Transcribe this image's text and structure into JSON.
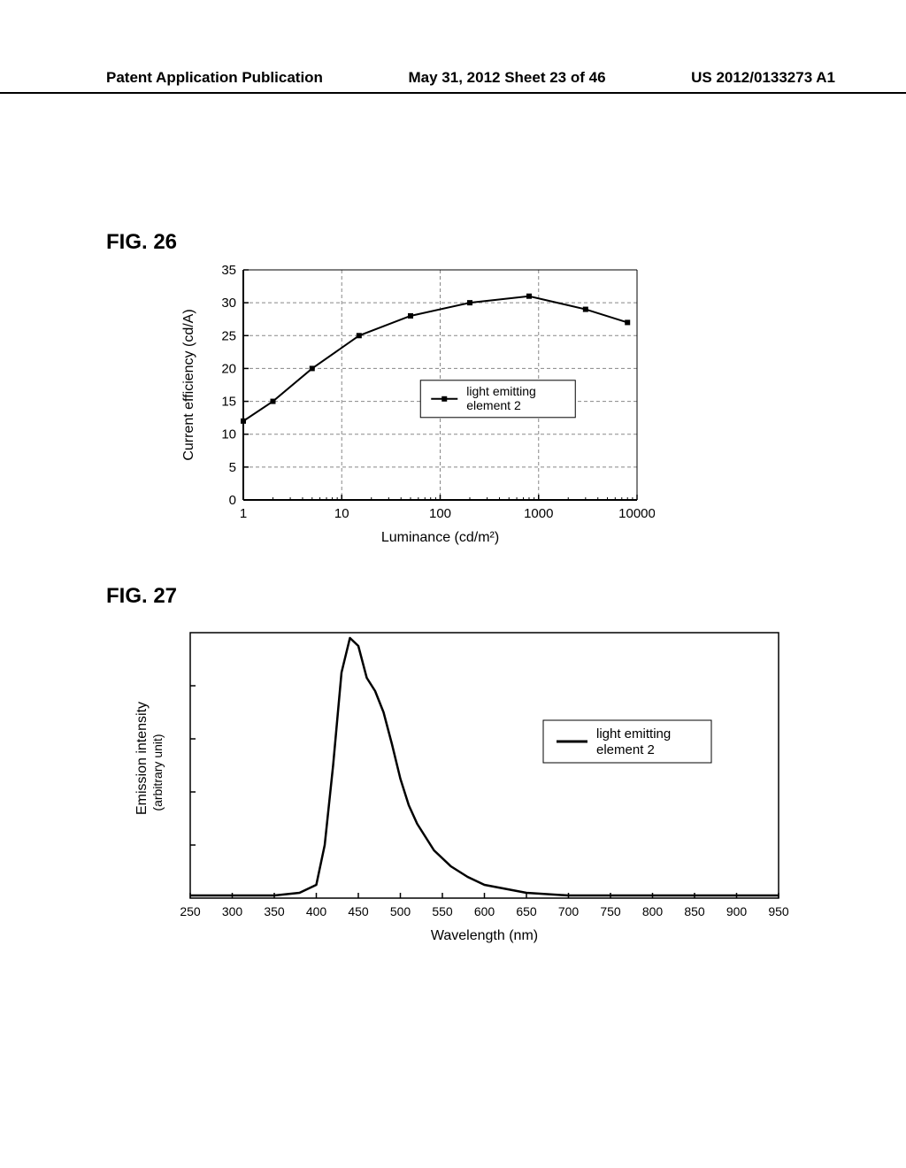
{
  "header": {
    "left": "Patent Application Publication",
    "center": "May 31, 2012  Sheet 23 of 46",
    "right": "US 2012/0133273 A1"
  },
  "fig26": {
    "label": "FIG. 26",
    "type": "line",
    "xlabel": "Luminance (cd/m²)",
    "ylabel": "Current efficiency (cd/A)",
    "xscale": "log",
    "xlim": [
      1,
      10000
    ],
    "xticks": [
      1,
      10,
      100,
      1000,
      10000
    ],
    "xtick_labels": [
      "1",
      "10",
      "100",
      "1000",
      "10000"
    ],
    "ylim": [
      0,
      35
    ],
    "yticks": [
      0,
      5,
      10,
      15,
      20,
      25,
      30,
      35
    ],
    "ytick_labels": [
      "0",
      "5",
      "10",
      "15",
      "20",
      "25",
      "30",
      "35"
    ],
    "series": {
      "name": "light emitting element 2",
      "x": [
        1,
        2,
        5,
        15,
        50,
        200,
        800,
        3000,
        8000
      ],
      "y": [
        12,
        15,
        20,
        25,
        28,
        30,
        31,
        29,
        27
      ],
      "marker": "square",
      "marker_size": 6,
      "marker_color": "#000000",
      "line_color": "#000000",
      "line_width": 2
    },
    "grid_color": "#888888",
    "grid_style": "dashed",
    "axis_color": "#000000",
    "bg_color": "#ffffff",
    "label_fontsize": 16,
    "tick_fontsize": 15,
    "legend_box": true,
    "legend_marker": "square"
  },
  "fig27": {
    "label": "FIG. 27",
    "type": "line",
    "xlabel": "Wavelength (nm)",
    "ylabel": "Emission intensity",
    "ylabel2": "(arbitrary unit)",
    "xlim": [
      250,
      950
    ],
    "xticks": [
      250,
      300,
      350,
      400,
      450,
      500,
      550,
      600,
      650,
      700,
      750,
      800,
      850,
      900,
      950
    ],
    "xtick_labels": [
      "250",
      "300",
      "350",
      "400",
      "450",
      "500",
      "550",
      "600",
      "650",
      "700",
      "750",
      "800",
      "850",
      "900",
      "950"
    ],
    "series": {
      "name": "light emitting element 2",
      "x": [
        250,
        350,
        380,
        400,
        410,
        420,
        430,
        440,
        450,
        460,
        470,
        480,
        490,
        500,
        510,
        520,
        540,
        560,
        580,
        600,
        650,
        700,
        750,
        800,
        900,
        950
      ],
      "y": [
        0.01,
        0.01,
        0.02,
        0.05,
        0.2,
        0.5,
        0.85,
        0.98,
        0.95,
        0.83,
        0.78,
        0.7,
        0.58,
        0.45,
        0.35,
        0.28,
        0.18,
        0.12,
        0.08,
        0.05,
        0.02,
        0.01,
        0.01,
        0.01,
        0.01,
        0.01
      ],
      "line_color": "#000000",
      "line_width": 2.5
    },
    "axis_color": "#000000",
    "bg_color": "#ffffff",
    "label_fontsize": 16,
    "tick_fontsize": 14,
    "legend_box": true,
    "legend_marker": "line"
  }
}
